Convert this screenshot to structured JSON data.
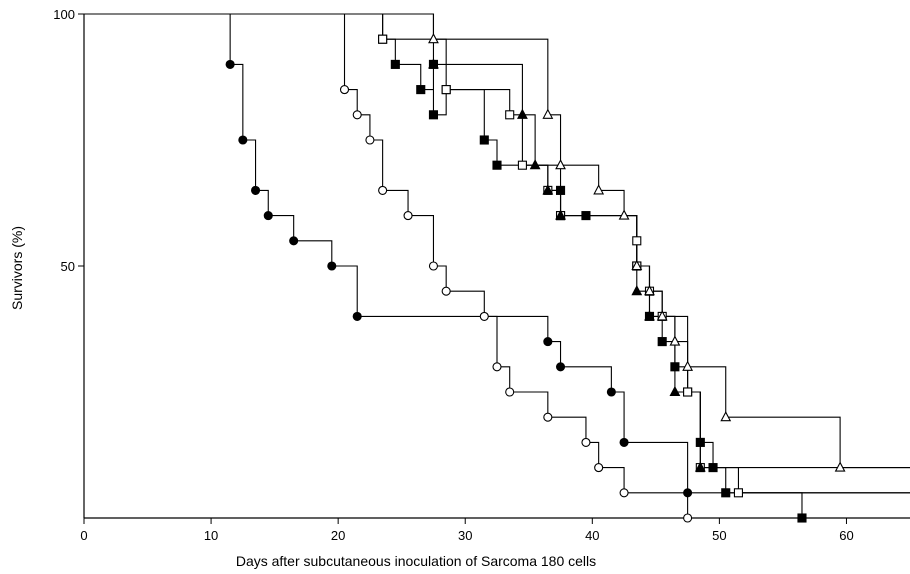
{
  "chart_data": {
    "type": "line",
    "title": "",
    "xlabel": "Days after subcutaneous inoculation of Sarcoma 180 cells",
    "ylabel": "Survivors (%)",
    "xlim": [
      0,
      65
    ],
    "ylim": [
      0,
      100
    ],
    "x_ticks": [
      0,
      10,
      20,
      30,
      40,
      50,
      60
    ],
    "y_ticks": [
      50,
      100
    ],
    "grid": false,
    "step_style": "survival-step",
    "series": [
      {
        "marker": "filled-circle",
        "color": "#000000",
        "points": [
          [
            11.5,
            90
          ],
          [
            12.5,
            75
          ],
          [
            13.5,
            65
          ],
          [
            14.5,
            60
          ],
          [
            16.5,
            55
          ],
          [
            19.5,
            50
          ],
          [
            21.5,
            40
          ],
          [
            36.5,
            35
          ],
          [
            37.5,
            30
          ],
          [
            41.5,
            25
          ],
          [
            42.5,
            15
          ],
          [
            47.5,
            5
          ]
        ],
        "end": [
          65,
          5
        ]
      },
      {
        "marker": "open-circle",
        "color": "#000000",
        "points": [
          [
            20.5,
            85
          ],
          [
            21.5,
            80
          ],
          [
            22.5,
            75
          ],
          [
            23.5,
            65
          ],
          [
            25.5,
            60
          ],
          [
            27.5,
            50
          ],
          [
            28.5,
            45
          ],
          [
            31.5,
            40
          ],
          [
            32.5,
            30
          ],
          [
            33.5,
            25
          ],
          [
            36.5,
            20
          ],
          [
            39.5,
            15
          ],
          [
            40.5,
            10
          ],
          [
            42.5,
            5
          ],
          [
            47.5,
            0
          ]
        ],
        "end": [
          65,
          0
        ]
      },
      {
        "marker": "filled-square",
        "color": "#000000",
        "points": [
          [
            23.5,
            95
          ],
          [
            24.5,
            90
          ],
          [
            26.5,
            85
          ],
          [
            27.5,
            90
          ],
          [
            28.5,
            85
          ],
          [
            27.5,
            80
          ],
          [
            31.5,
            75
          ],
          [
            32.5,
            70
          ],
          [
            37.5,
            65
          ],
          [
            37.5,
            60
          ],
          [
            39.5,
            60
          ],
          [
            43.5,
            50
          ],
          [
            44.5,
            40
          ],
          [
            45.5,
            35
          ],
          [
            46.5,
            30
          ],
          [
            47.5,
            25
          ],
          [
            48.5,
            15
          ],
          [
            49.5,
            10
          ],
          [
            50.5,
            5
          ],
          [
            56.5,
            0
          ]
        ],
        "end": [
          65,
          0
        ]
      },
      {
        "marker": "open-square",
        "color": "#000000",
        "points": [
          [
            23.5,
            95
          ],
          [
            28.5,
            85
          ],
          [
            33.5,
            80
          ],
          [
            34.5,
            70
          ],
          [
            36.5,
            65
          ],
          [
            37.5,
            60
          ],
          [
            43.5,
            55
          ],
          [
            43.5,
            50
          ],
          [
            44.5,
            45
          ],
          [
            45.5,
            40
          ],
          [
            47.5,
            25
          ],
          [
            48.5,
            10
          ],
          [
            51.5,
            5
          ]
        ],
        "end": [
          65,
          5
        ]
      },
      {
        "marker": "filled-triangle",
        "color": "#000000",
        "points": [
          [
            27.5,
            90
          ],
          [
            34.5,
            80
          ],
          [
            35.5,
            70
          ],
          [
            36.5,
            65
          ],
          [
            37.5,
            60
          ],
          [
            43.5,
            45
          ],
          [
            44.5,
            40
          ],
          [
            46.5,
            25
          ],
          [
            48.5,
            10
          ]
        ],
        "end": [
          65,
          10
        ]
      },
      {
        "marker": "open-triangle",
        "color": "#000000",
        "points": [
          [
            27.5,
            95
          ],
          [
            36.5,
            80
          ],
          [
            37.5,
            70
          ],
          [
            40.5,
            65
          ],
          [
            42.5,
            60
          ],
          [
            43.5,
            50
          ],
          [
            44.5,
            45
          ],
          [
            45.5,
            40
          ],
          [
            46.5,
            35
          ],
          [
            47.5,
            30
          ],
          [
            50.5,
            20
          ],
          [
            59.5,
            10
          ]
        ],
        "end": [
          65,
          10
        ]
      }
    ]
  }
}
